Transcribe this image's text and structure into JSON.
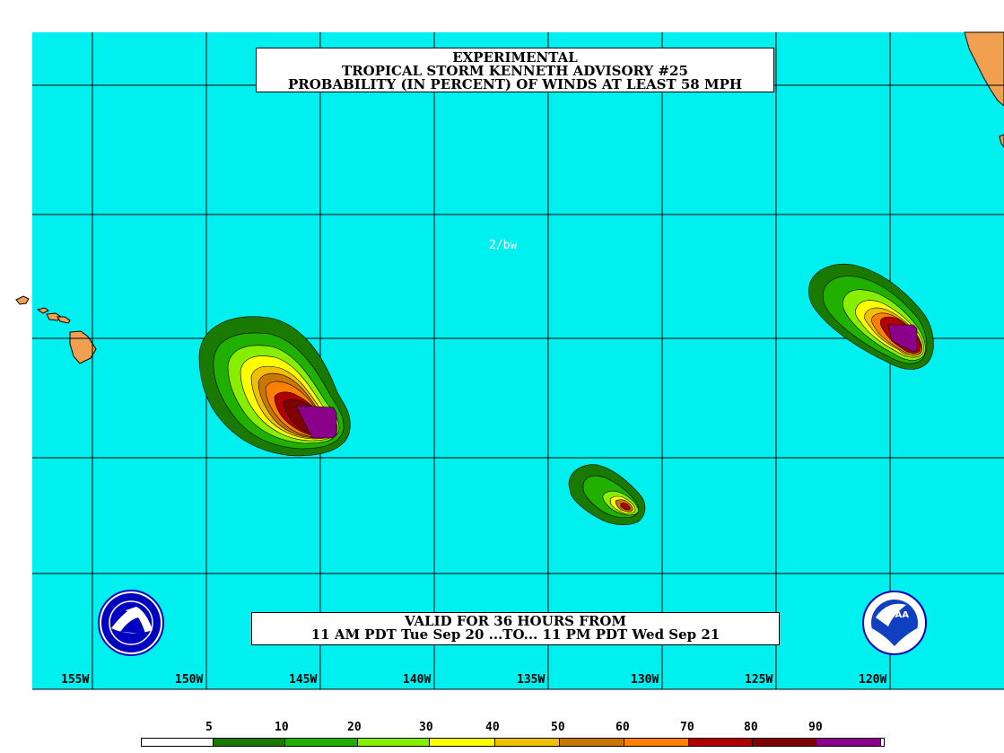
{
  "title": {
    "line1": "EXPERIMENTAL",
    "line2": "TROPICAL STORM KENNETH ADVISORY #25",
    "line3": "PROBABILITY (IN PERCENT) OF WINDS AT LEAST 58 MPH"
  },
  "valid": {
    "line1": "VALID FOR 36 HOURS FROM",
    "line2": "11 AM PDT Tue Sep 20 ...TO... 11 PM PDT Wed Sep 21"
  },
  "initials": "2/bw",
  "longitudes": [
    "155W",
    "150W",
    "145W",
    "140W",
    "135W",
    "130W",
    "125W",
    "120W"
  ],
  "legend": {
    "labels": [
      "5",
      "10",
      "20",
      "30",
      "40",
      "50",
      "60",
      "70",
      "80",
      "90"
    ],
    "colors": [
      "#ffffff",
      "#1a7a00",
      "#22b000",
      "#88ee00",
      "#ffff00",
      "#f0c000",
      "#c87800",
      "#ff8000",
      "#b00000",
      "#800000",
      "#8b008b"
    ]
  },
  "colors": {
    "ocean": "#00f0f0",
    "land": "#f0a050",
    "grid": "#000000"
  },
  "logos": {
    "left": "nws-logo",
    "right": "noaa-logo",
    "noaa_text": "NOAA"
  }
}
